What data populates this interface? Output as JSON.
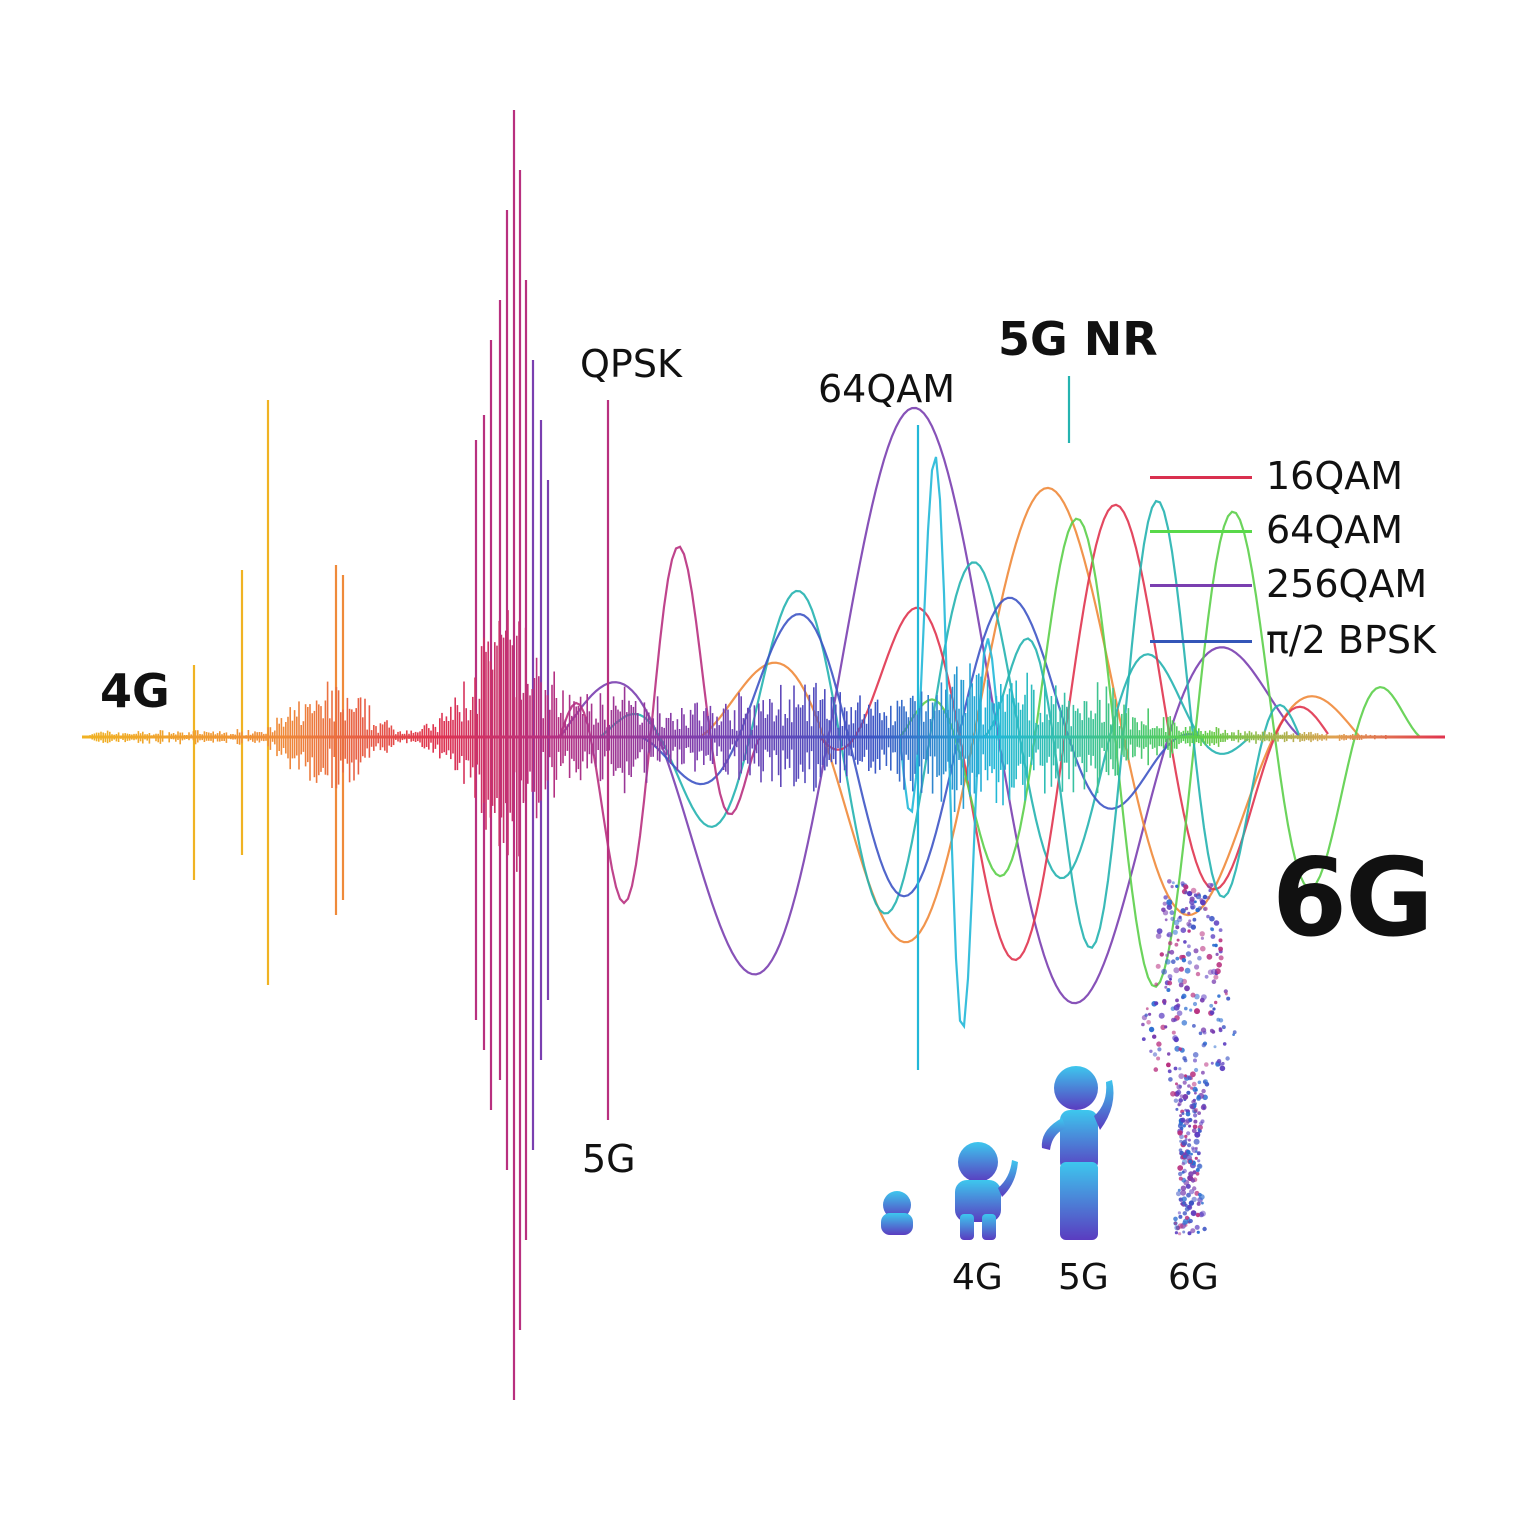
{
  "labels": {
    "gen_4g": "4G",
    "qpsk": "QPSK",
    "qam64_top": "64QAM",
    "nr_5g": "5G NR",
    "gen_5g": "5G",
    "gen_6g": "6G"
  },
  "legend": [
    {
      "label": "16QAM",
      "color": "#d9304f"
    },
    {
      "label": "64QAM",
      "color": "#59d94a"
    },
    {
      "label": "256QAM",
      "color": "#7a3fb0"
    },
    {
      "label": "π/2 BPSK",
      "color": "#3456b8"
    }
  ],
  "growth_labels": [
    "4G",
    "5G",
    "6G"
  ],
  "colors": {
    "yellow": "#f0b323",
    "orange": "#ef8a3a",
    "red": "#e0344f",
    "magenta": "#b8307f",
    "purple": "#7a3fb0",
    "blue": "#3e55c5",
    "cyan": "#22b8d8",
    "teal": "#25b3b0",
    "green": "#5ccf4a",
    "figure_top": "#3dc7ee",
    "figure_bottom": "#5a3cc0"
  },
  "icons": [
    "baby-figure-icon",
    "child-figure-icon",
    "adult-figure-icon",
    "particle-figure-icon"
  ]
}
